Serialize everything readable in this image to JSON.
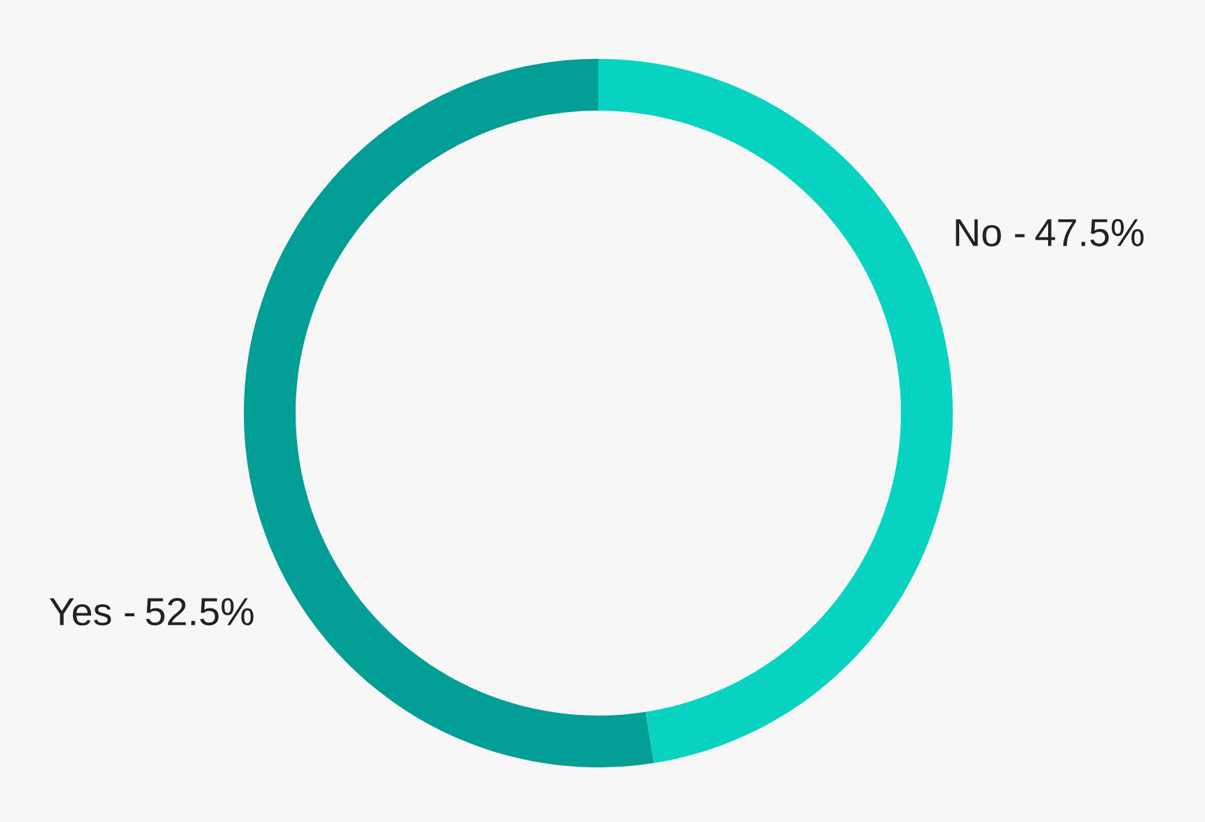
{
  "chart_data": {
    "type": "donut",
    "categories": [
      "No -",
      "Yes -"
    ],
    "values": [
      47.5,
      52.5
    ],
    "colors": [
      "#07d3c0",
      "#039e96"
    ],
    "value_labels": [
      "47.5%",
      "52.5%"
    ]
  }
}
